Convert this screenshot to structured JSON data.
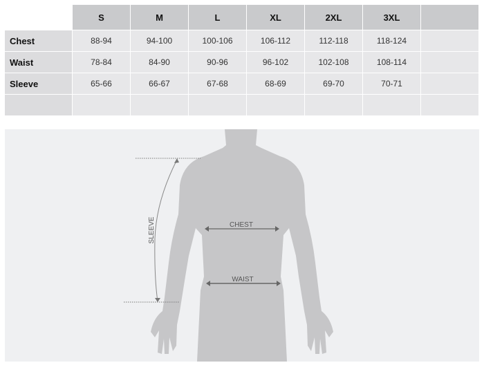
{
  "table": {
    "columns": [
      "S",
      "M",
      "L",
      "XL",
      "2XL",
      "3XL",
      ""
    ],
    "rows": [
      {
        "label": "Chest",
        "values": [
          "88-94",
          "94-100",
          "100-106",
          "106-112",
          "112-118",
          "118-124",
          ""
        ]
      },
      {
        "label": "Waist",
        "values": [
          "78-84",
          "84-90",
          "90-96",
          "96-102",
          "102-108",
          "108-114",
          ""
        ]
      },
      {
        "label": "Sleeve",
        "values": [
          "65-66",
          "66-67",
          "67-68",
          "68-69",
          "69-70",
          "70-71",
          ""
        ]
      },
      {
        "label": "",
        "values": [
          "",
          "",
          "",
          "",
          "",
          "",
          ""
        ]
      }
    ]
  },
  "diagram": {
    "chest_label": "CHEST",
    "waist_label": "WAIST",
    "sleeve_label": "SLEEVE",
    "body_color": "#c6c6c8",
    "background": "#eff0f2"
  }
}
